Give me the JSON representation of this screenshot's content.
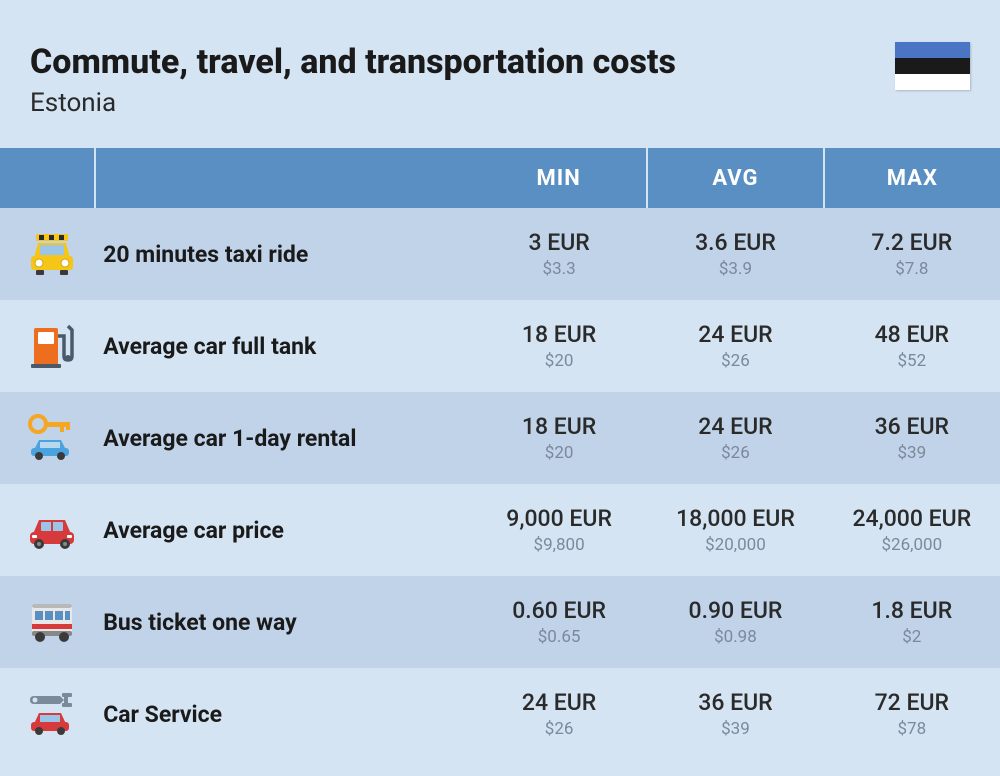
{
  "header": {
    "title": "Commute, travel, and transportation costs",
    "subtitle": "Estonia"
  },
  "flag": {
    "stripes": [
      "#4a75c4",
      "#1a1a1a",
      "#ffffff"
    ]
  },
  "columns": [
    "MIN",
    "AVG",
    "MAX"
  ],
  "colors": {
    "header_bg": "#5a8fc3",
    "row_odd": "#c0d3e9",
    "row_even": "#d4e4f3",
    "text_primary": "#1a1a1a",
    "text_secondary": "#7a8a9a",
    "page_bg": "#d4e4f3"
  },
  "rows": [
    {
      "icon": "taxi-icon",
      "label": "20 minutes taxi ride",
      "min": {
        "eur": "3 EUR",
        "usd": "$3.3"
      },
      "avg": {
        "eur": "3.6 EUR",
        "usd": "$3.9"
      },
      "max": {
        "eur": "7.2 EUR",
        "usd": "$7.8"
      }
    },
    {
      "icon": "fuel-pump-icon",
      "label": "Average car full tank",
      "min": {
        "eur": "18 EUR",
        "usd": "$20"
      },
      "avg": {
        "eur": "24 EUR",
        "usd": "$26"
      },
      "max": {
        "eur": "48 EUR",
        "usd": "$52"
      }
    },
    {
      "icon": "car-key-icon",
      "label": "Average car 1-day rental",
      "min": {
        "eur": "18 EUR",
        "usd": "$20"
      },
      "avg": {
        "eur": "24 EUR",
        "usd": "$26"
      },
      "max": {
        "eur": "36 EUR",
        "usd": "$39"
      }
    },
    {
      "icon": "car-icon",
      "label": "Average car price",
      "min": {
        "eur": "9,000 EUR",
        "usd": "$9,800"
      },
      "avg": {
        "eur": "18,000 EUR",
        "usd": "$20,000"
      },
      "max": {
        "eur": "24,000 EUR",
        "usd": "$26,000"
      }
    },
    {
      "icon": "bus-icon",
      "label": "Bus ticket one way",
      "min": {
        "eur": "0.60 EUR",
        "usd": "$0.65"
      },
      "avg": {
        "eur": "0.90 EUR",
        "usd": "$0.98"
      },
      "max": {
        "eur": "1.8 EUR",
        "usd": "$2"
      }
    },
    {
      "icon": "wrench-car-icon",
      "label": "Car Service",
      "min": {
        "eur": "24 EUR",
        "usd": "$26"
      },
      "avg": {
        "eur": "36 EUR",
        "usd": "$39"
      },
      "max": {
        "eur": "72 EUR",
        "usd": "$78"
      }
    }
  ]
}
